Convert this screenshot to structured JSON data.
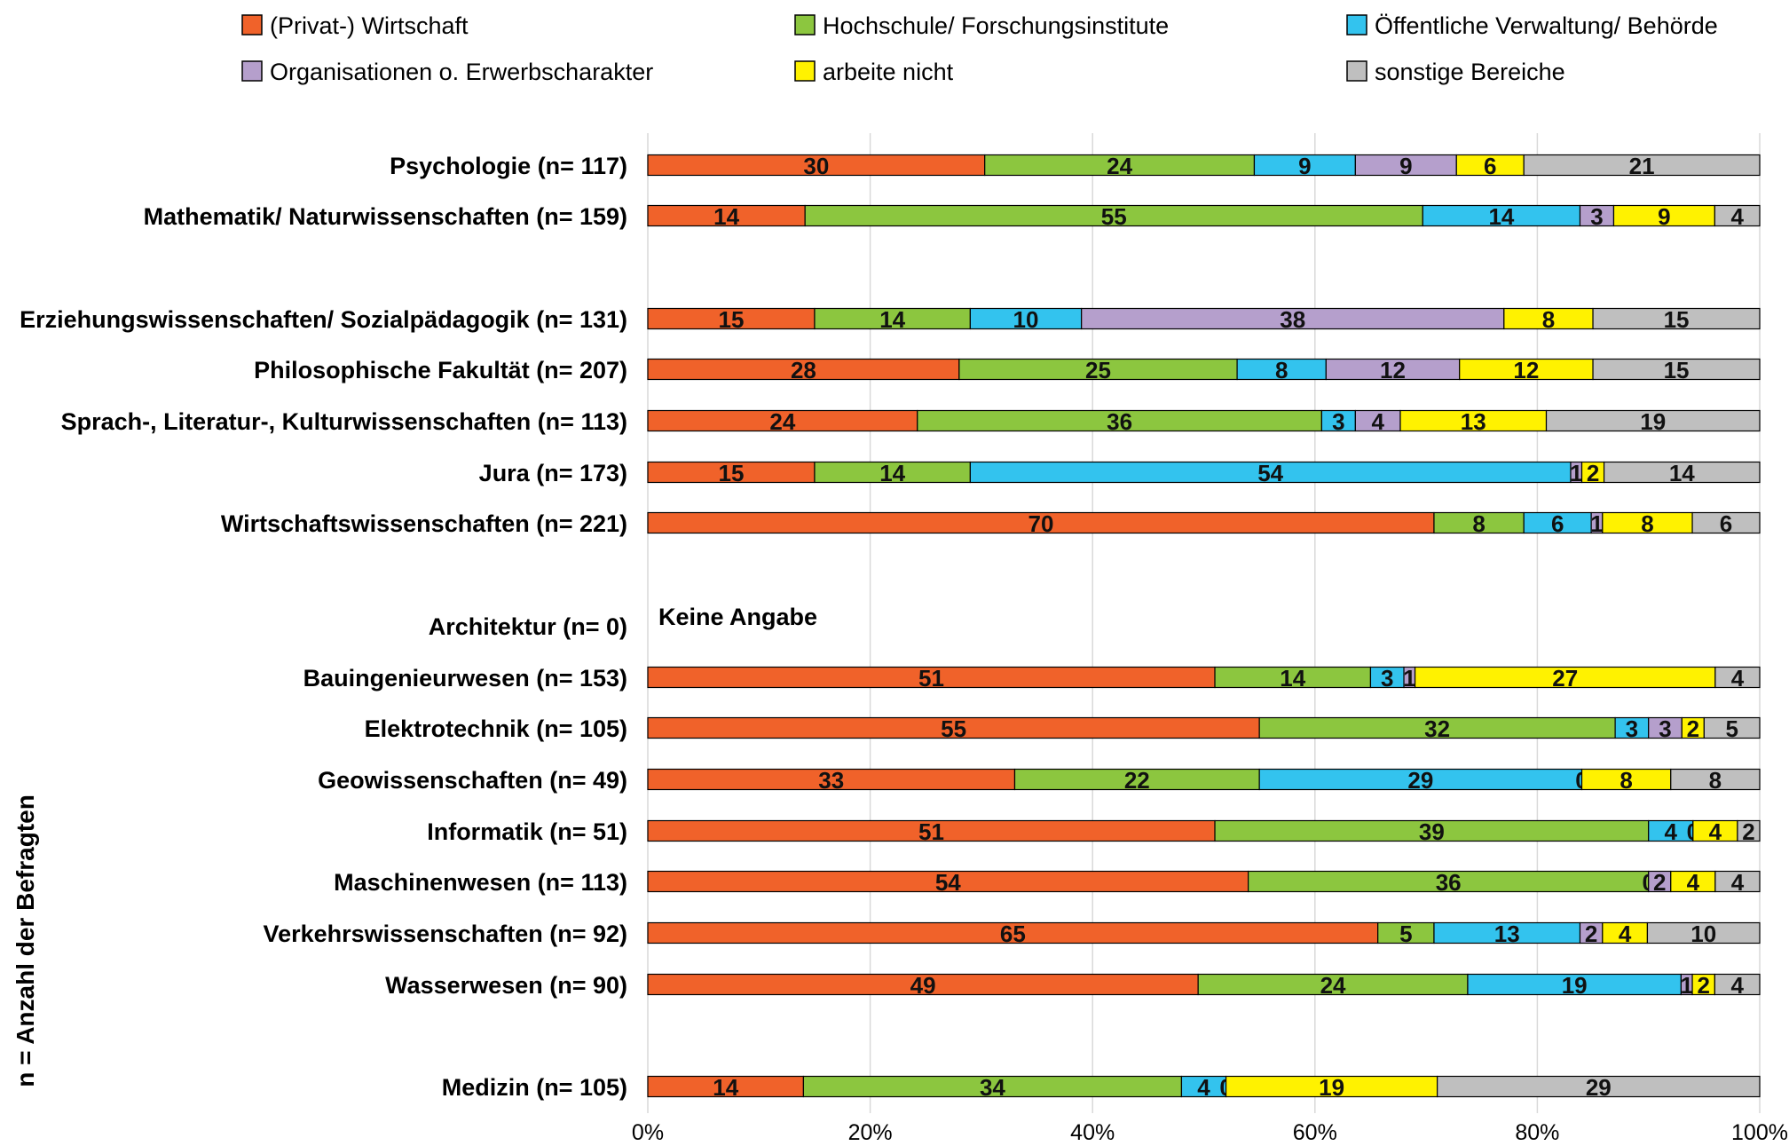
{
  "chart_data": {
    "type": "bar",
    "orientation": "horizontal",
    "stacked": "percent",
    "ylabel": "n = Anzahl der Befragten",
    "xlim": [
      0,
      100
    ],
    "x_ticks": [
      "0%",
      "20%",
      "40%",
      "60%",
      "80%",
      "100%"
    ],
    "grid": true,
    "legend_position": "top",
    "series": [
      {
        "name": "(Privat-) Wirtschaft",
        "color": "#f0622a"
      },
      {
        "name": "Hochschule/ Forschungsinstitute",
        "color": "#8cc63f"
      },
      {
        "name": "Öffentliche Verwaltung/ Behörde",
        "color": "#33c3ee"
      },
      {
        "name": "Organisationen o. Erwerbscharakter",
        "color": "#b59fcc"
      },
      {
        "name": "arbeite nicht",
        "color": "#fff200"
      },
      {
        "name": "sonstige Bereiche",
        "color": "#bfbfbf"
      }
    ],
    "categories": [
      {
        "label": "Psychologie (n= 117)",
        "values": [
          30,
          24,
          9,
          9,
          6,
          21
        ]
      },
      {
        "label": "Mathematik/ Naturwissenschaften (n= 159)",
        "values": [
          14,
          55,
          14,
          3,
          9,
          4
        ]
      },
      {
        "label": "Erziehungswissenschaften/ Sozialpädagogik (n= 131)",
        "values": [
          15,
          14,
          10,
          38,
          8,
          15
        ]
      },
      {
        "label": "Philosophische Fakultät (n= 207)",
        "values": [
          28,
          25,
          8,
          12,
          12,
          15
        ]
      },
      {
        "label": "Sprach-, Literatur-, Kulturwissenschaften (n= 113)",
        "values": [
          24,
          36,
          3,
          4,
          13,
          19
        ]
      },
      {
        "label": "Jura (n= 173)",
        "values": [
          15,
          14,
          54,
          1,
          2,
          14
        ]
      },
      {
        "label": "Wirtschaftswissenschaften (n= 221)",
        "values": [
          70,
          8,
          6,
          1,
          8,
          6
        ]
      },
      {
        "label": "Architektur (n= 0)",
        "values": null,
        "note": "Keine Angabe"
      },
      {
        "label": "Bauingenieurwesen (n= 153)",
        "values": [
          51,
          14,
          3,
          1,
          27,
          4
        ]
      },
      {
        "label": "Elektrotechnik (n= 105)",
        "values": [
          55,
          32,
          3,
          3,
          2,
          5
        ]
      },
      {
        "label": "Geowissenschaften (n= 49)",
        "values": [
          33,
          22,
          29,
          0,
          8,
          8
        ]
      },
      {
        "label": "Informatik (n= 51)",
        "values": [
          51,
          39,
          4,
          0,
          4,
          2
        ]
      },
      {
        "label": "Maschinenwesen (n= 113)",
        "values": [
          54,
          36,
          0,
          2,
          4,
          4
        ]
      },
      {
        "label": "Verkehrswissenschaften (n= 92)",
        "values": [
          65,
          5,
          13,
          2,
          4,
          10
        ]
      },
      {
        "label": "Wasserwesen (n= 90)",
        "values": [
          49,
          24,
          19,
          1,
          2,
          4
        ]
      },
      {
        "label": "Medizin (n= 105)",
        "values": [
          14,
          34,
          4,
          0,
          19,
          29
        ]
      }
    ]
  }
}
